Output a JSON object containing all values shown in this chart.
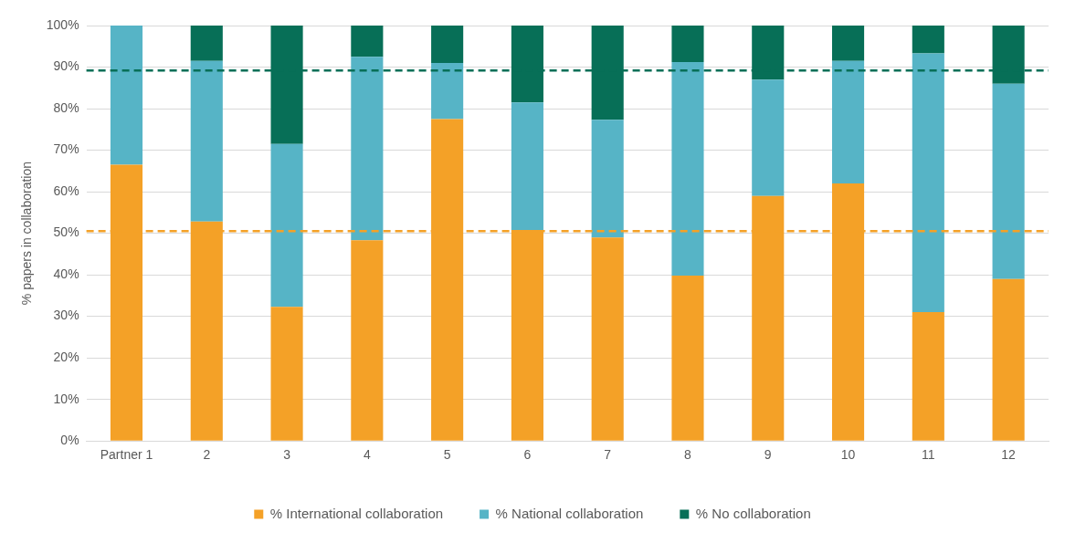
{
  "chart_data": {
    "type": "bar",
    "stacked": true,
    "ylabel": "% papers in collaboration",
    "categories": [
      "Partner 1",
      "2",
      "3",
      "4",
      "5",
      "6",
      "7",
      "8",
      "9",
      "10",
      "11",
      "12"
    ],
    "series": [
      {
        "name": "% International collaboration",
        "color": "#f4a127",
        "values": [
          66.5,
          52.8,
          32.3,
          48.3,
          77.5,
          50.8,
          49,
          39.8,
          59,
          62,
          31,
          39
        ]
      },
      {
        "name": "% National collaboration",
        "color": "#56b4c6",
        "values": [
          33.5,
          38.7,
          39.2,
          44.2,
          13.5,
          30.7,
          28.3,
          51.4,
          28,
          29.5,
          62.3,
          47
        ]
      },
      {
        "name": "% No collaboration",
        "color": "#076f57",
        "values": [
          0,
          8.5,
          28.5,
          7.5,
          9,
          18.5,
          22.7,
          8.8,
          13,
          8.5,
          6.7,
          14
        ]
      }
    ],
    "ylim": [
      0,
      100
    ],
    "yticks": [
      {
        "value": 0,
        "label": "0%"
      },
      {
        "value": 10,
        "label": "10%"
      },
      {
        "value": 20,
        "label": "20%"
      },
      {
        "value": 30,
        "label": "30%"
      },
      {
        "value": 40,
        "label": "40%"
      },
      {
        "value": 50,
        "label": "50%"
      },
      {
        "value": 60,
        "label": "60%"
      },
      {
        "value": 70,
        "label": "70%"
      },
      {
        "value": 80,
        "label": "80%"
      },
      {
        "value": 90,
        "label": "90%"
      },
      {
        "value": 100,
        "label": "100%"
      }
    ],
    "ref_lines": [
      {
        "axis": "y",
        "value": 50.5,
        "color": "#f4a127",
        "line_style": "dashed"
      },
      {
        "axis": "y",
        "value": 89.2,
        "color": "#076f57",
        "line_style": "dashed"
      }
    ],
    "grid": "y",
    "legend": "bottom"
  }
}
